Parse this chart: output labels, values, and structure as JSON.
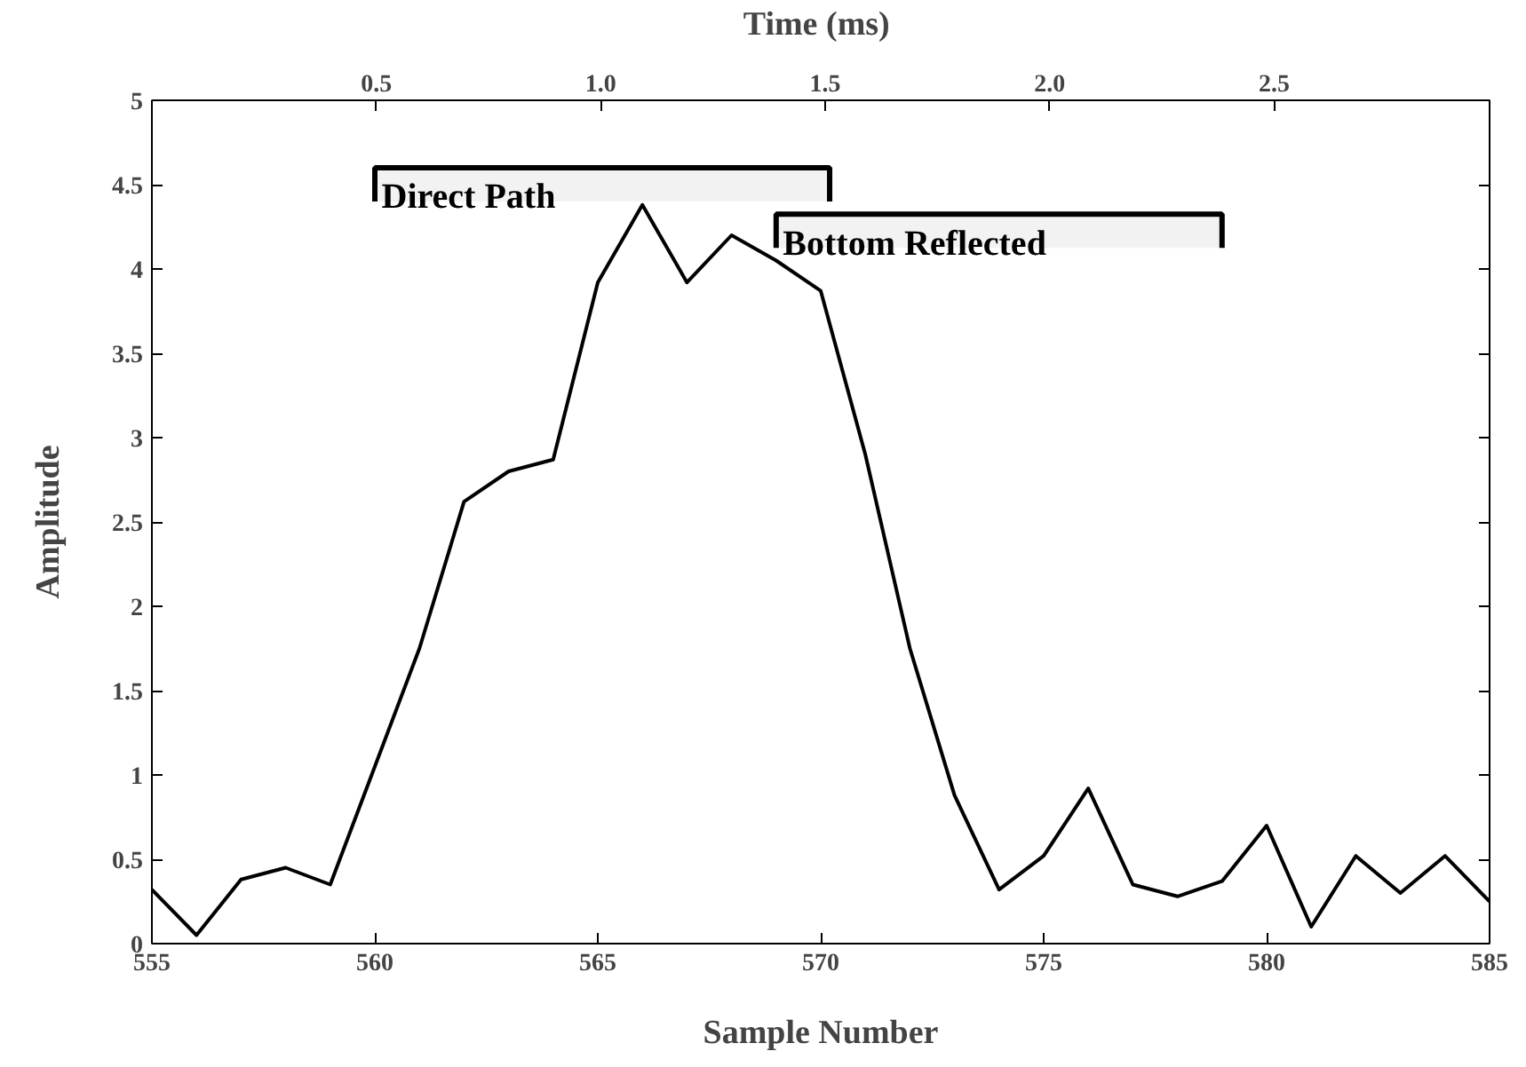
{
  "chart_data": {
    "type": "line",
    "xlabel": "Sample Number",
    "ylabel": "Amplitude",
    "x2label": "Time  (ms)",
    "x": [
      555,
      556,
      557,
      558,
      559,
      560,
      561,
      562,
      563,
      564,
      565,
      566,
      567,
      568,
      569,
      570,
      571,
      572,
      573,
      574,
      575,
      576,
      577,
      578,
      579,
      580,
      581,
      582,
      583,
      584,
      585
    ],
    "series": [
      {
        "color": "#000000",
        "values": [
          0.32,
          0.05,
          0.38,
          0.45,
          0.35,
          1.05,
          1.75,
          2.62,
          2.8,
          2.87,
          3.92,
          4.38,
          3.92,
          4.2,
          4.05,
          3.87,
          2.9,
          1.75,
          0.88,
          0.32,
          0.52,
          0.92,
          0.35,
          0.28,
          0.37,
          0.7,
          0.1,
          0.52,
          0.3,
          0.52,
          0.25
        ]
      }
    ],
    "xlim": [
      555,
      585
    ],
    "xticks": [
      555,
      560,
      565,
      570,
      575,
      580,
      585
    ],
    "ylim": [
      0,
      5
    ],
    "yticks": [
      0,
      0.5,
      1,
      1.5,
      2,
      2.5,
      3,
      3.5,
      4,
      4.5,
      5
    ],
    "x2lim": [
      0,
      2.98
    ],
    "x2ticks": [
      {
        "value": 0.5,
        "label": "0.5"
      },
      {
        "value": 1.0,
        "label": "1.0"
      },
      {
        "value": 1.5,
        "label": "1.5"
      },
      {
        "value": 2.0,
        "label": "2.0"
      },
      {
        "value": 2.5,
        "label": "2.5"
      }
    ],
    "bands": [
      {
        "axis": "x",
        "from": 560,
        "to": 570.2,
        "label": "Direct Path"
      },
      {
        "axis": "x",
        "from": 569,
        "to": 579,
        "label": "Bottom Reflected"
      }
    ],
    "grid": false,
    "marker": "none",
    "line_style": "solid"
  }
}
